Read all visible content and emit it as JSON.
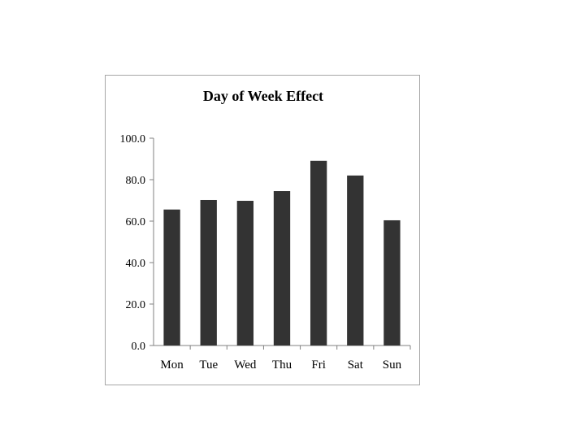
{
  "chart_data": {
    "type": "bar",
    "title": "Day of Week Effect",
    "xlabel": "",
    "ylabel": "",
    "categories": [
      "Mon",
      "Tue",
      "Wed",
      "Thu",
      "Fri",
      "Sat",
      "Sun"
    ],
    "values": [
      65.6,
      70.2,
      69.8,
      74.5,
      89.1,
      82.0,
      60.4
    ],
    "ylim": [
      0,
      100
    ],
    "yticks": [
      "0.0",
      "20.0",
      "40.0",
      "60.0",
      "80.0",
      "100.0"
    ],
    "grid": false,
    "legend": "none",
    "bar_color": "#333333"
  }
}
